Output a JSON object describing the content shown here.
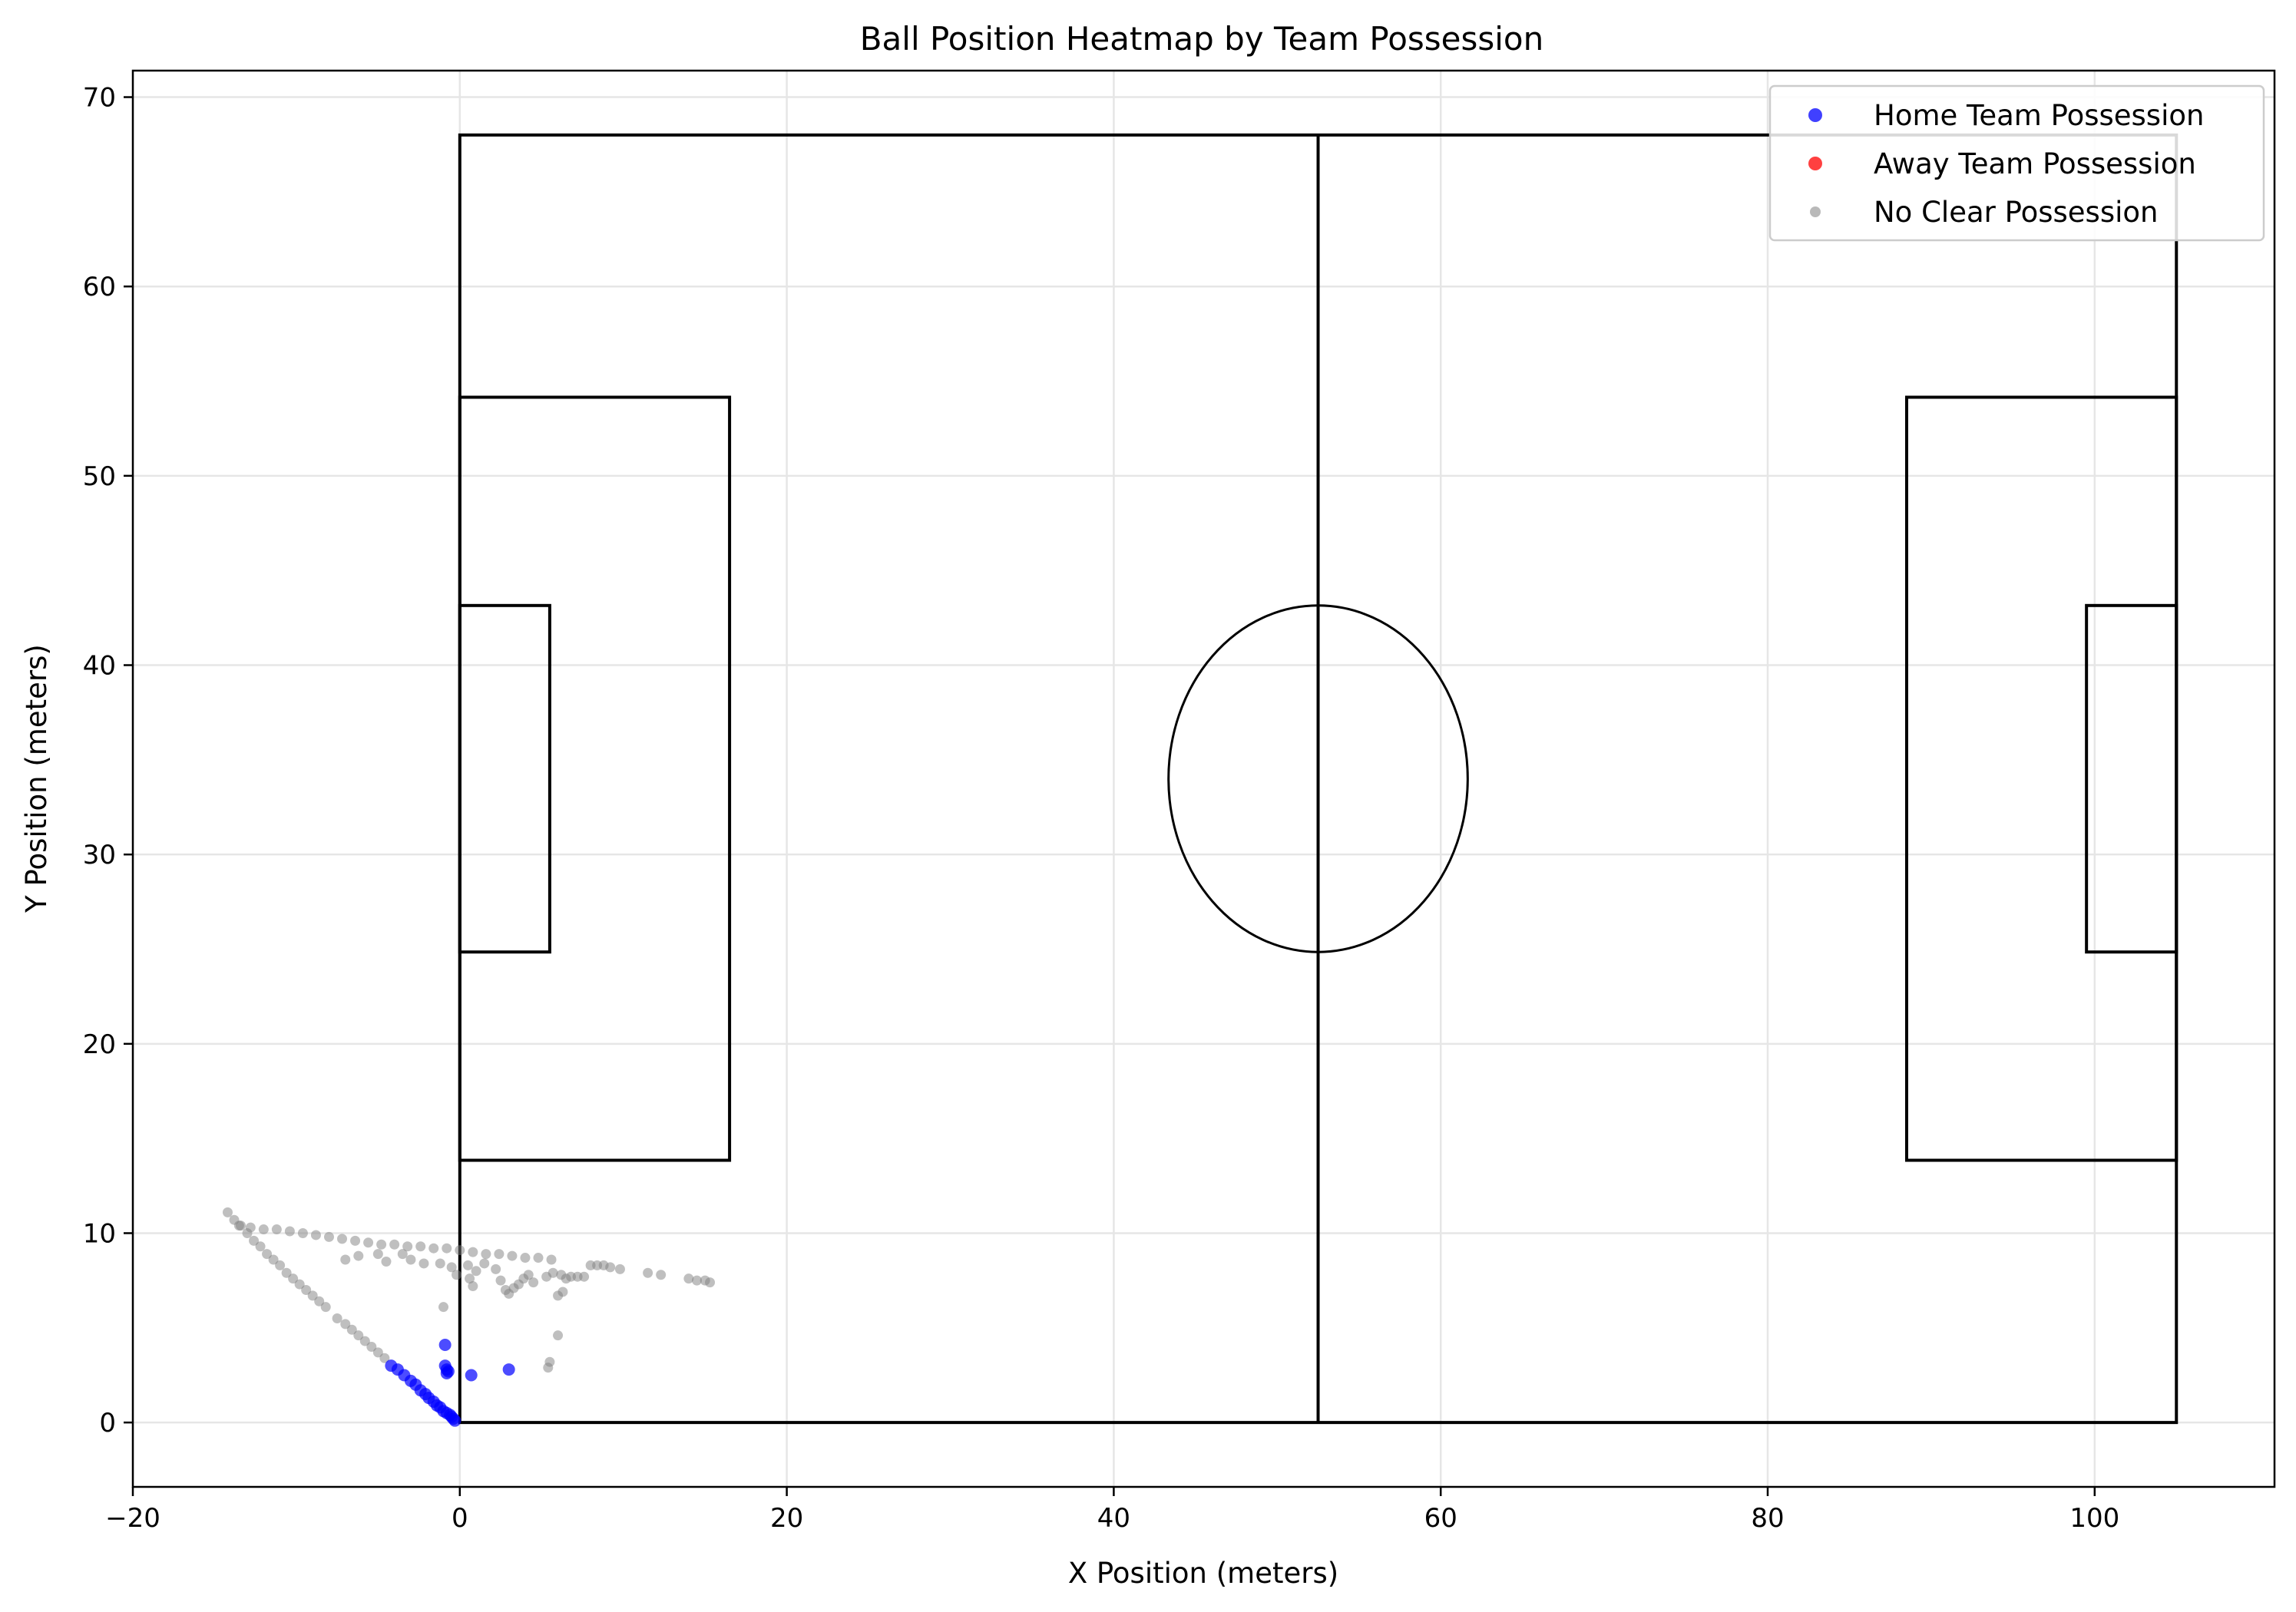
{
  "chart_data": {
    "type": "scatter",
    "title": "Ball Position Heatmap by Team Possession",
    "xlabel": "X Position (meters)",
    "ylabel": "Y Position (meters)",
    "xlim": [
      -20,
      111
    ],
    "ylim": [
      -3.4,
      71.4
    ],
    "xticks": [
      -20,
      0,
      20,
      40,
      60,
      80,
      100
    ],
    "yticks": [
      0,
      10,
      20,
      30,
      40,
      50,
      60,
      70
    ],
    "grid": true,
    "legend_position": "top-right",
    "pitch": {
      "length": 105,
      "width": 68,
      "penalty_box": {
        "depth": 16.5,
        "y_range": [
          13.85,
          54.15
        ]
      },
      "goal_area": {
        "depth": 5.5,
        "y_range": [
          24.85,
          43.15
        ]
      },
      "center_circle_radius": 9.15,
      "line_color": "#000000"
    },
    "series": [
      {
        "name": "Home Team Possession",
        "color": "#0000ff",
        "points": [
          [
            -0.9,
            4.1
          ],
          [
            -0.9,
            3.0
          ],
          [
            -0.8,
            2.8
          ],
          [
            -0.8,
            2.6
          ],
          [
            -0.7,
            2.7
          ],
          [
            0.7,
            2.5
          ],
          [
            3.0,
            2.8
          ],
          [
            -4.2,
            3.0
          ],
          [
            -3.8,
            2.8
          ],
          [
            -3.4,
            2.5
          ],
          [
            -3.0,
            2.2
          ],
          [
            -2.7,
            2.0
          ],
          [
            -2.4,
            1.7
          ],
          [
            -2.1,
            1.5
          ],
          [
            -1.9,
            1.3
          ],
          [
            -1.6,
            1.1
          ],
          [
            -1.4,
            0.9
          ],
          [
            -1.2,
            0.8
          ],
          [
            -1.0,
            0.6
          ],
          [
            -0.8,
            0.5
          ],
          [
            -0.6,
            0.4
          ],
          [
            -0.5,
            0.3
          ],
          [
            -0.4,
            0.2
          ],
          [
            -0.3,
            0.1
          ]
        ]
      },
      {
        "name": "Away Team Possession",
        "color": "#ff0000",
        "points": []
      },
      {
        "name": "No Clear Possession",
        "color": "#808080",
        "points": [
          [
            -14.2,
            11.1
          ],
          [
            -13.8,
            10.7
          ],
          [
            -13.4,
            10.4
          ],
          [
            -13.0,
            10.0
          ],
          [
            -12.6,
            9.6
          ],
          [
            -12.2,
            9.3
          ],
          [
            -11.8,
            8.9
          ],
          [
            -11.4,
            8.6
          ],
          [
            -11.0,
            8.3
          ],
          [
            -10.6,
            7.9
          ],
          [
            -10.2,
            7.6
          ],
          [
            -9.8,
            7.3
          ],
          [
            -9.4,
            7.0
          ],
          [
            -9.0,
            6.7
          ],
          [
            -8.6,
            6.4
          ],
          [
            -8.2,
            6.1
          ],
          [
            -7.5,
            5.5
          ],
          [
            -7.0,
            5.2
          ],
          [
            -6.6,
            4.9
          ],
          [
            -6.2,
            4.6
          ],
          [
            -5.8,
            4.3
          ],
          [
            -5.4,
            4.0
          ],
          [
            -5.0,
            3.7
          ],
          [
            -4.6,
            3.4
          ],
          [
            -13.5,
            10.4
          ],
          [
            -12.8,
            10.3
          ],
          [
            -12.0,
            10.2
          ],
          [
            -11.2,
            10.2
          ],
          [
            -10.4,
            10.1
          ],
          [
            -9.6,
            10.0
          ],
          [
            -8.8,
            9.9
          ],
          [
            -8.0,
            9.8
          ],
          [
            -7.2,
            9.7
          ],
          [
            -6.4,
            9.6
          ],
          [
            -5.6,
            9.5
          ],
          [
            -4.8,
            9.4
          ],
          [
            -4.0,
            9.4
          ],
          [
            -3.2,
            9.3
          ],
          [
            -2.4,
            9.3
          ],
          [
            -1.6,
            9.2
          ],
          [
            -0.8,
            9.2
          ],
          [
            0.0,
            9.1
          ],
          [
            0.8,
            9.0
          ],
          [
            1.6,
            8.9
          ],
          [
            2.4,
            8.9
          ],
          [
            3.2,
            8.8
          ],
          [
            4.0,
            8.7
          ],
          [
            4.8,
            8.7
          ],
          [
            5.6,
            8.6
          ],
          [
            -7.0,
            8.6
          ],
          [
            -6.2,
            8.8
          ],
          [
            -5.0,
            8.9
          ],
          [
            -4.5,
            8.5
          ],
          [
            -3.5,
            8.9
          ],
          [
            -3.0,
            8.6
          ],
          [
            -2.2,
            8.4
          ],
          [
            -1.2,
            8.4
          ],
          [
            -0.5,
            8.2
          ],
          [
            -0.2,
            7.8
          ],
          [
            0.5,
            8.3
          ],
          [
            1.0,
            8.0
          ],
          [
            1.5,
            8.4
          ],
          [
            2.2,
            8.1
          ],
          [
            0.6,
            7.6
          ],
          [
            0.8,
            7.2
          ],
          [
            2.5,
            7.5
          ],
          [
            2.8,
            7.0
          ],
          [
            3.0,
            6.8
          ],
          [
            3.3,
            7.1
          ],
          [
            3.6,
            7.3
          ],
          [
            3.9,
            7.6
          ],
          [
            4.2,
            7.8
          ],
          [
            4.5,
            7.4
          ],
          [
            5.3,
            7.7
          ],
          [
            5.7,
            7.9
          ],
          [
            6.2,
            7.8
          ],
          [
            6.5,
            7.6
          ],
          [
            6.0,
            6.7
          ],
          [
            6.3,
            6.9
          ],
          [
            6.8,
            7.7
          ],
          [
            7.2,
            7.7
          ],
          [
            7.6,
            7.7
          ],
          [
            8.0,
            8.3
          ],
          [
            8.4,
            8.3
          ],
          [
            8.8,
            8.3
          ],
          [
            9.2,
            8.2
          ],
          [
            9.8,
            8.1
          ],
          [
            11.5,
            7.9
          ],
          [
            12.3,
            7.8
          ],
          [
            14.0,
            7.6
          ],
          [
            14.5,
            7.5
          ],
          [
            15.0,
            7.5
          ],
          [
            15.3,
            7.4
          ],
          [
            -1.0,
            6.1
          ],
          [
            6.0,
            4.6
          ],
          [
            5.5,
            3.2
          ],
          [
            5.4,
            2.9
          ]
        ]
      }
    ]
  }
}
